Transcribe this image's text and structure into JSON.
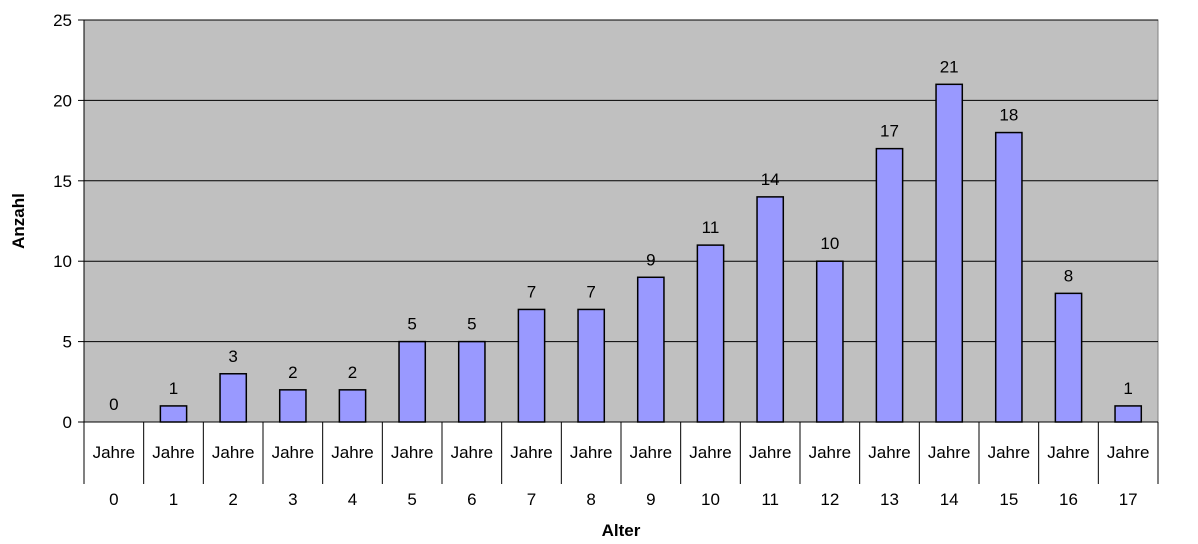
{
  "chart_data": {
    "type": "bar",
    "categories": [
      [
        "Jahre",
        "0"
      ],
      [
        "Jahre",
        "1"
      ],
      [
        "Jahre",
        "2"
      ],
      [
        "Jahre",
        "3"
      ],
      [
        "Jahre",
        "4"
      ],
      [
        "Jahre",
        "5"
      ],
      [
        "Jahre",
        "6"
      ],
      [
        "Jahre",
        "7"
      ],
      [
        "Jahre",
        "8"
      ],
      [
        "Jahre",
        "9"
      ],
      [
        "Jahre",
        "10"
      ],
      [
        "Jahre",
        "11"
      ],
      [
        "Jahre",
        "12"
      ],
      [
        "Jahre",
        "13"
      ],
      [
        "Jahre",
        "14"
      ],
      [
        "Jahre",
        "15"
      ],
      [
        "Jahre",
        "16"
      ],
      [
        "Jahre",
        "17"
      ]
    ],
    "values": [
      0,
      1,
      3,
      2,
      2,
      5,
      5,
      7,
      7,
      9,
      11,
      14,
      10,
      17,
      21,
      18,
      8,
      1
    ],
    "xlabel": "Alter",
    "ylabel": "Anzahl",
    "ylim": [
      0,
      25
    ],
    "yticks": [
      0,
      5,
      10,
      15,
      20,
      25
    ],
    "grid": true,
    "legend": "none",
    "colors": {
      "bar_fill": "#9999ff",
      "bar_stroke": "#000000",
      "plot_background": "#c0c0c0",
      "gridline": "#000000"
    }
  }
}
